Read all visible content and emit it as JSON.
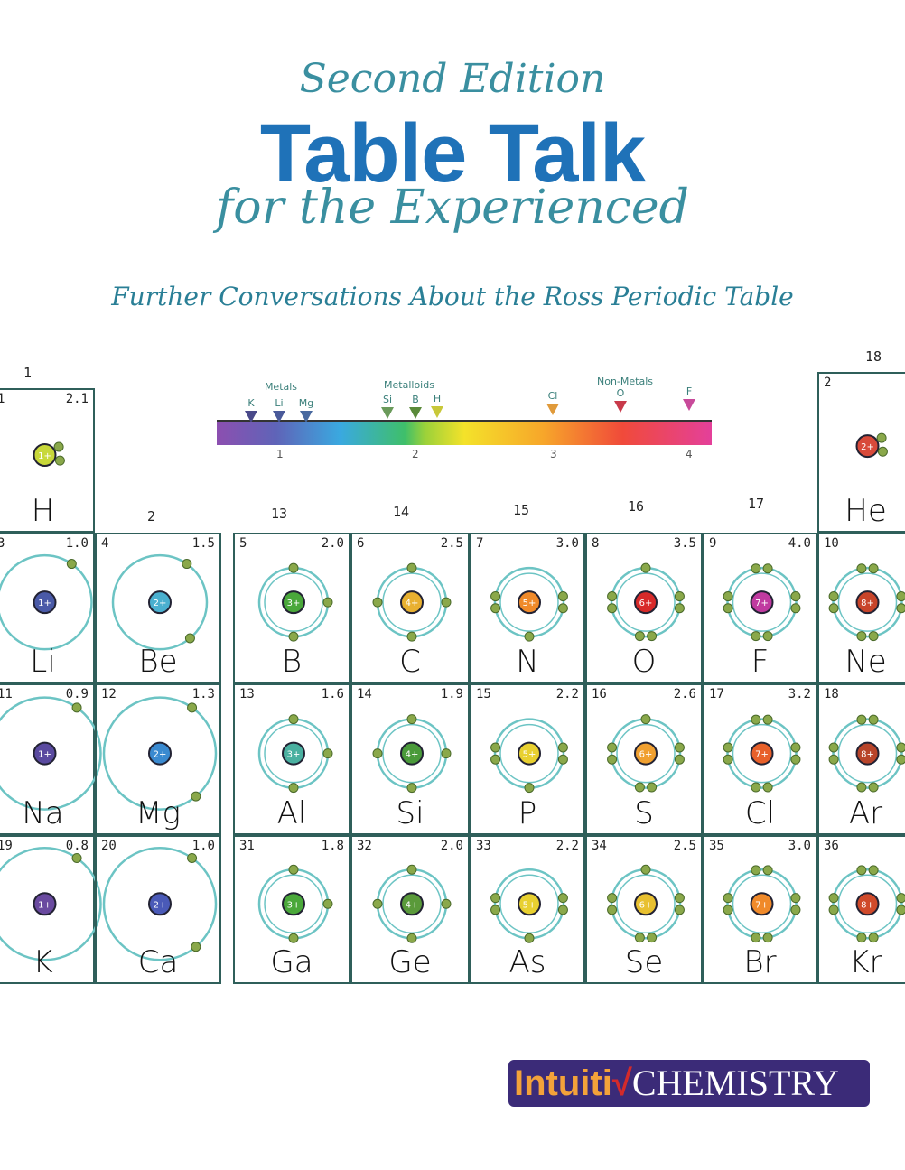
{
  "cover": {
    "edition": "Second Edition",
    "title": "Table Talk",
    "subtitle_line": "for the Experienced",
    "tagline": "Further Conversations About the Ross Periodic Table"
  },
  "scale": {
    "categories": [
      "Metals",
      "Metalloids",
      "Non-Metals"
    ],
    "markers": [
      {
        "label": "K",
        "color": "#4a4a8a"
      },
      {
        "label": "Li",
        "color": "#4a5a9a"
      },
      {
        "label": "Mg",
        "color": "#4a6aa0"
      },
      {
        "label": "Si",
        "color": "#6a9a5a"
      },
      {
        "label": "B",
        "color": "#5a8a3a"
      },
      {
        "label": "H",
        "color": "#c8c83a"
      },
      {
        "label": "Cl",
        "color": "#e09a3a"
      },
      {
        "label": "O",
        "color": "#c83a4a"
      },
      {
        "label": "F",
        "color": "#c84a9a"
      }
    ],
    "ticks": [
      "1",
      "2",
      "3",
      "4"
    ]
  },
  "groups": [
    "1",
    "2",
    "13",
    "14",
    "15",
    "16",
    "17",
    "18"
  ],
  "elements": [
    {
      "num": "1",
      "en": "2.1",
      "sym": "H",
      "charge": "1+",
      "color": "#c8d83a",
      "e": 1
    },
    {
      "num": "2",
      "en": "",
      "sym": "He",
      "charge": "2+",
      "color": "#d84a3a",
      "e": 2
    },
    {
      "num": "3",
      "en": "1.0",
      "sym": "Li",
      "charge": "1+",
      "color": "#4a5aa8",
      "e": 1
    },
    {
      "num": "4",
      "en": "1.5",
      "sym": "Be",
      "charge": "2+",
      "color": "#4ab0d0",
      "e": 2
    },
    {
      "num": "5",
      "en": "2.0",
      "sym": "B",
      "charge": "3+",
      "color": "#4aa83a",
      "e": 3
    },
    {
      "num": "6",
      "en": "2.5",
      "sym": "C",
      "charge": "4+",
      "color": "#e8b030",
      "e": 4
    },
    {
      "num": "7",
      "en": "3.0",
      "sym": "N",
      "charge": "5+",
      "color": "#f08a2a",
      "e": 5
    },
    {
      "num": "8",
      "en": "3.5",
      "sym": "O",
      "charge": "6+",
      "color": "#d82a2a",
      "e": 6
    },
    {
      "num": "9",
      "en": "4.0",
      "sym": "F",
      "charge": "7+",
      "color": "#c03aa0",
      "e": 7
    },
    {
      "num": "10",
      "en": "",
      "sym": "Ne",
      "charge": "8+",
      "color": "#c8442a",
      "e": 8
    },
    {
      "num": "11",
      "en": "0.9",
      "sym": "Na",
      "charge": "1+",
      "color": "#5a4aa0",
      "e": 1
    },
    {
      "num": "12",
      "en": "1.3",
      "sym": "Mg",
      "charge": "2+",
      "color": "#3a8ad0",
      "e": 2
    },
    {
      "num": "13",
      "en": "1.6",
      "sym": "Al",
      "charge": "3+",
      "color": "#4ab0a0",
      "e": 3
    },
    {
      "num": "14",
      "en": "1.9",
      "sym": "Si",
      "charge": "4+",
      "color": "#4a9a3a",
      "e": 4
    },
    {
      "num": "15",
      "en": "2.2",
      "sym": "P",
      "charge": "5+",
      "color": "#e8d030",
      "e": 5
    },
    {
      "num": "16",
      "en": "2.6",
      "sym": "S",
      "charge": "6+",
      "color": "#f0a030",
      "e": 6
    },
    {
      "num": "17",
      "en": "3.2",
      "sym": "Cl",
      "charge": "7+",
      "color": "#e8602a",
      "e": 7
    },
    {
      "num": "18",
      "en": "",
      "sym": "Ar",
      "charge": "8+",
      "color": "#b8442a",
      "e": 8
    },
    {
      "num": "19",
      "en": "0.8",
      "sym": "K",
      "charge": "1+",
      "color": "#6a4aa0",
      "e": 1
    },
    {
      "num": "20",
      "en": "1.0",
      "sym": "Ca",
      "charge": "2+",
      "color": "#4a5ab8",
      "e": 2
    },
    {
      "num": "31",
      "en": "1.8",
      "sym": "Ga",
      "charge": "3+",
      "color": "#4aa83a",
      "e": 3
    },
    {
      "num": "32",
      "en": "2.0",
      "sym": "Ge",
      "charge": "4+",
      "color": "#5a9a3a",
      "e": 4
    },
    {
      "num": "33",
      "en": "2.2",
      "sym": "As",
      "charge": "5+",
      "color": "#e8d030",
      "e": 5
    },
    {
      "num": "34",
      "en": "2.5",
      "sym": "Se",
      "charge": "6+",
      "color": "#e8c030",
      "e": 6
    },
    {
      "num": "35",
      "en": "3.0",
      "sym": "Br",
      "charge": "7+",
      "color": "#f08a2a",
      "e": 7
    },
    {
      "num": "36",
      "en": "",
      "sym": "Kr",
      "charge": "8+",
      "color": "#d04a2a",
      "e": 8
    }
  ],
  "logo": {
    "part1": "Intuiti",
    "mark": "√",
    "part2": "CHEMISTRY"
  }
}
